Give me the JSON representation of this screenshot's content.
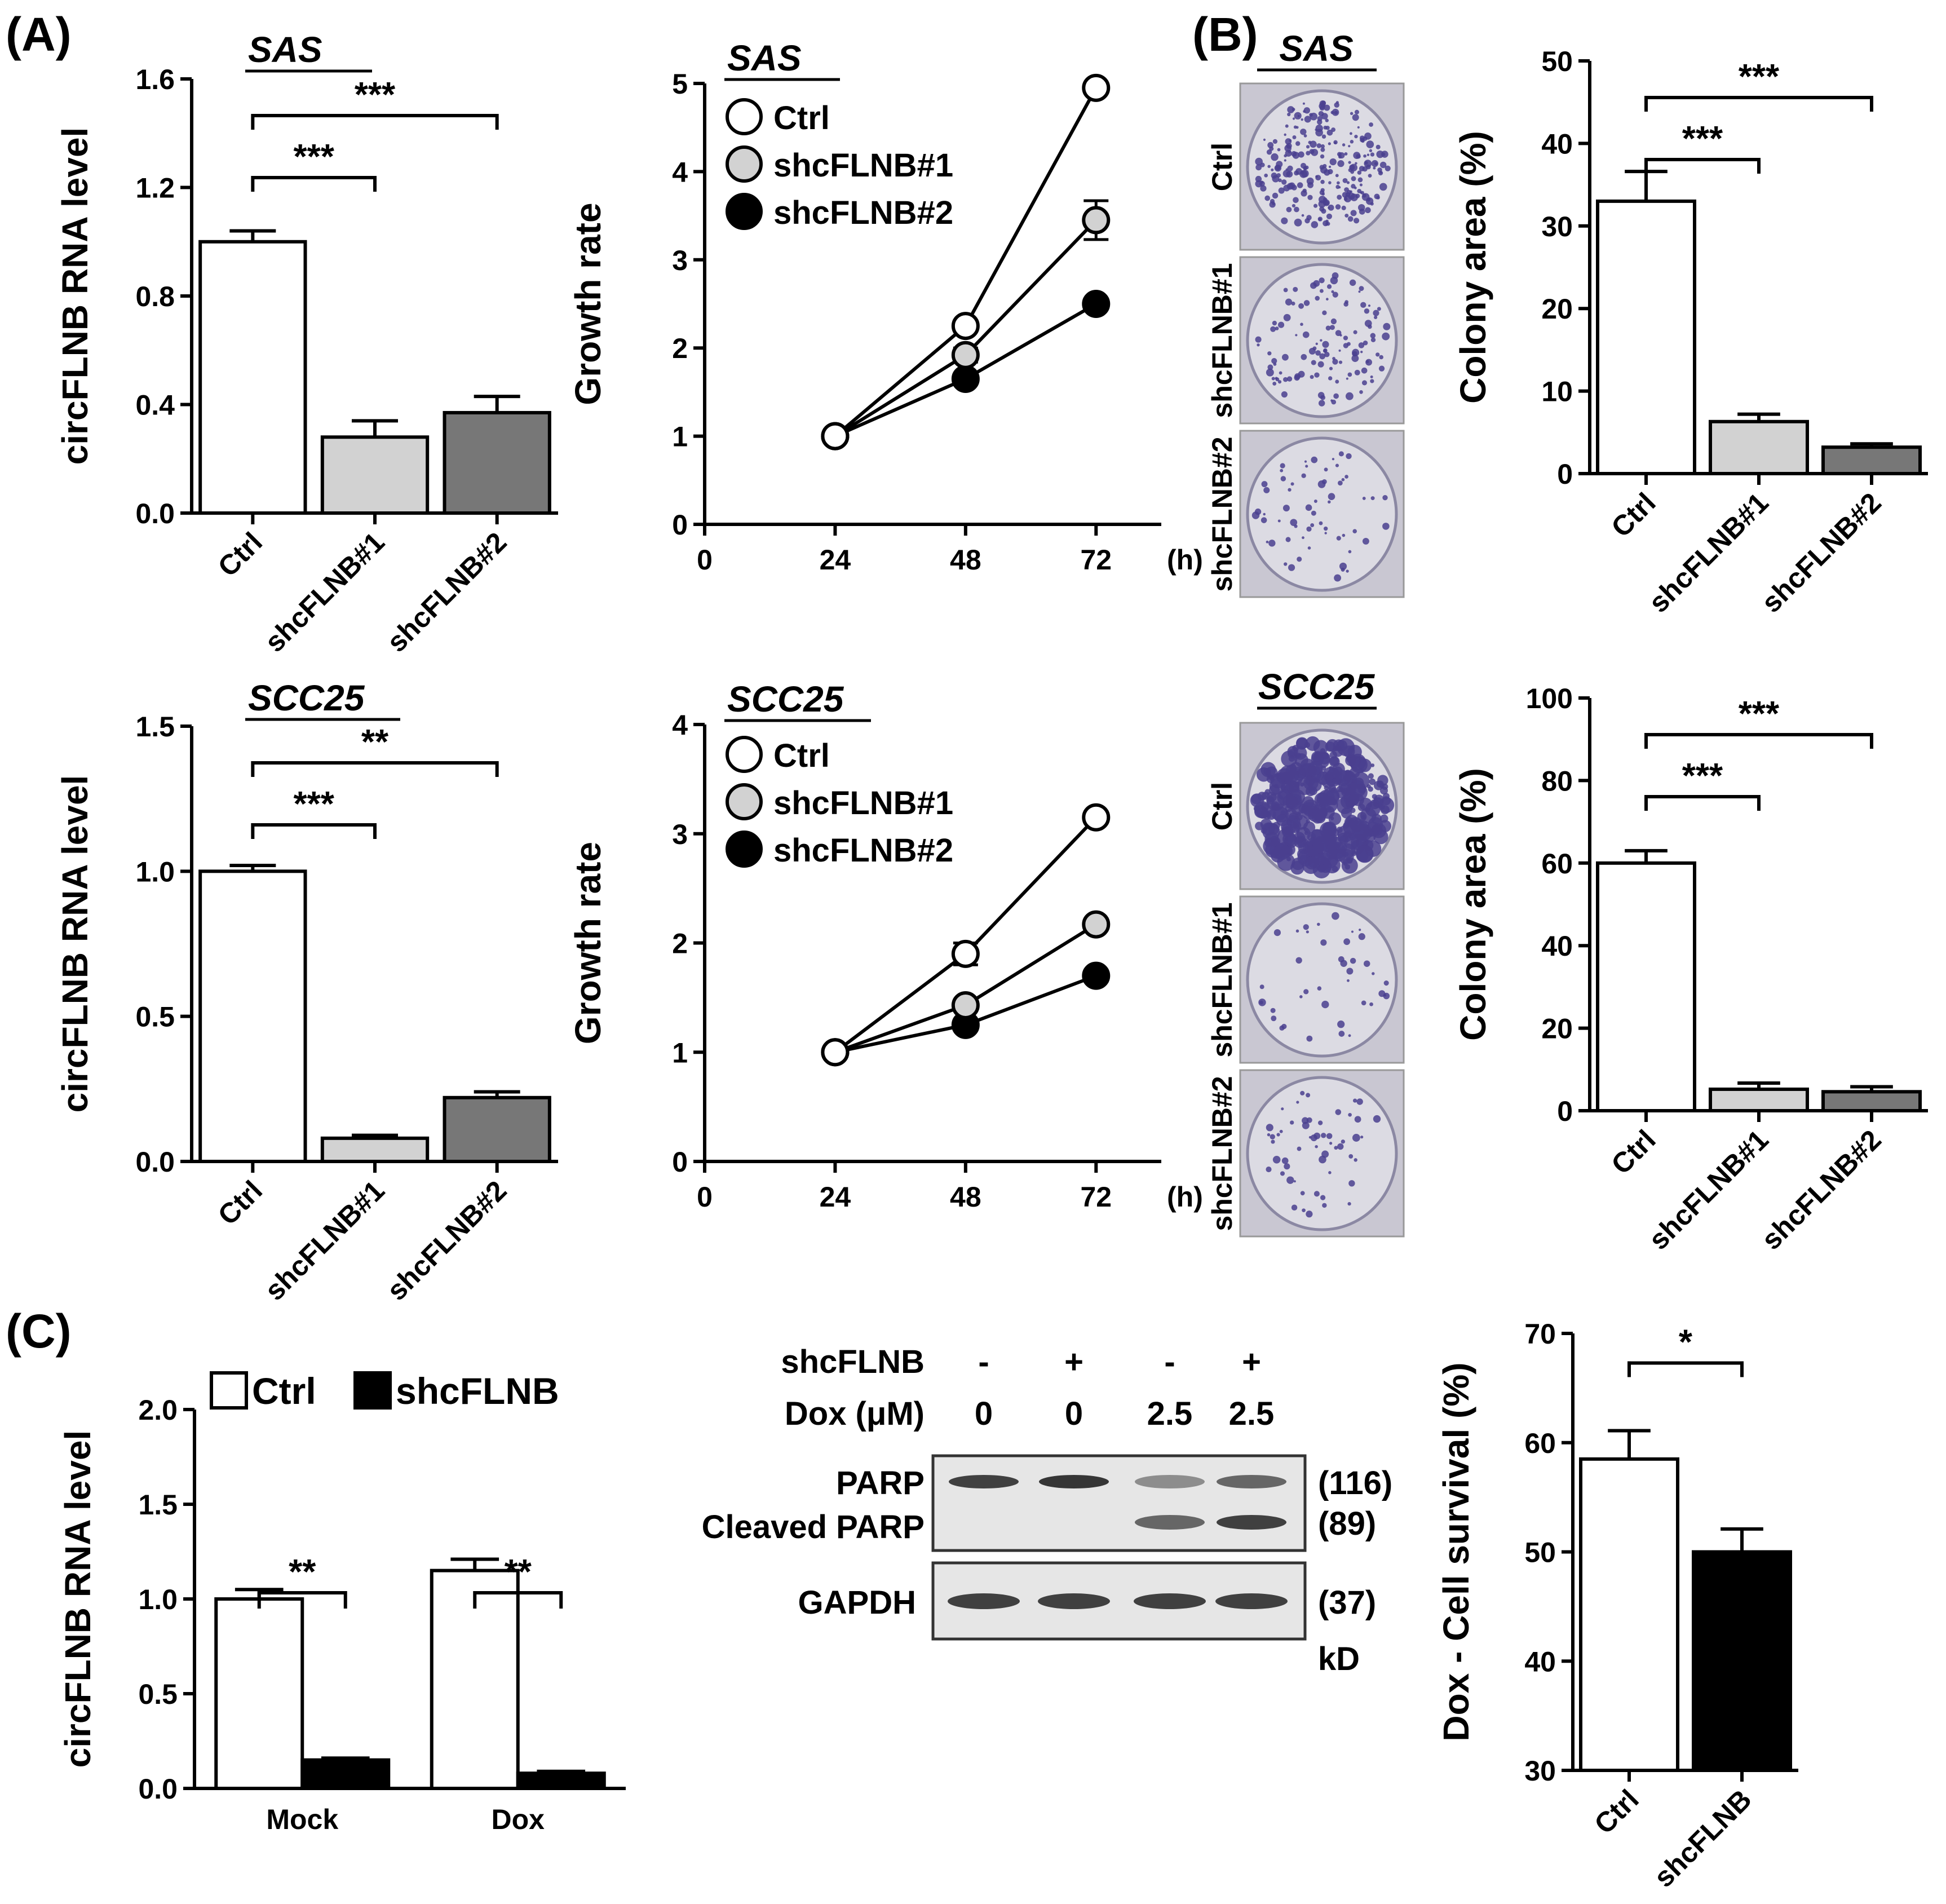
{
  "colors": {
    "ctrl": "#ffffff",
    "sh1": "#d2d2d2",
    "sh2": "#777777",
    "shc": "#000000",
    "plate": "#bcb7d9",
    "colony": "#4a3f8f"
  },
  "panels": {
    "a": "(A)",
    "b": "(B)",
    "c": "(C)"
  },
  "chart_data": [
    {
      "id": "a_sas_rna",
      "type": "bar",
      "title": "SAS",
      "ylabel": "circFLNB RNA level",
      "categories": [
        "Ctrl",
        "shcFLNB#1",
        "shcFLNB#2"
      ],
      "values": [
        1.0,
        0.28,
        0.37
      ],
      "errors": [
        0.04,
        0.06,
        0.06
      ],
      "colors": [
        "ctrl",
        "sh1",
        "sh2"
      ],
      "ylim": [
        0,
        1.6
      ],
      "yticks": [
        "0.0",
        "0.4",
        "0.8",
        "1.2",
        "1.6"
      ],
      "sig": [
        {
          "from": 0,
          "to": 1,
          "label": "***"
        },
        {
          "from": 0,
          "to": 2,
          "label": "***"
        }
      ]
    },
    {
      "id": "a_sas_growth",
      "type": "line",
      "title": "SAS",
      "ylabel": "Growth rate",
      "xlabel": "(h)",
      "x": [
        24,
        48,
        72
      ],
      "xticks": [
        "0",
        "24",
        "48",
        "72"
      ],
      "ylim": [
        0,
        5
      ],
      "yticks": [
        "0",
        "1",
        "2",
        "3",
        "4",
        "5"
      ],
      "series": [
        {
          "name": "Ctrl",
          "values": [
            1.0,
            2.25,
            4.95
          ],
          "errors": [
            0,
            0.05,
            0.05
          ],
          "color": "ctrl"
        },
        {
          "name": "shcFLNB#1",
          "values": [
            1.0,
            1.92,
            3.45
          ],
          "errors": [
            0,
            0.08,
            0.22
          ],
          "color": "sh1"
        },
        {
          "name": "shcFLNB#2",
          "values": [
            1.0,
            1.65,
            2.5
          ],
          "errors": [
            0,
            0.05,
            0.05
          ],
          "color": "shc"
        }
      ]
    },
    {
      "id": "b_sas_colony",
      "type": "bar",
      "ylabel": "Colony area (%)",
      "categories": [
        "Ctrl",
        "shcFLNB#1",
        "shcFLNB#2"
      ],
      "values": [
        33,
        6.3,
        3.2
      ],
      "errors": [
        3.6,
        0.9,
        0.4
      ],
      "colors": [
        "ctrl",
        "sh1",
        "sh2"
      ],
      "ylim": [
        0,
        50
      ],
      "yticks": [
        "0",
        "10",
        "20",
        "30",
        "40",
        "50"
      ],
      "sig": [
        {
          "from": 0,
          "to": 1,
          "label": "***"
        },
        {
          "from": 0,
          "to": 2,
          "label": "***"
        }
      ]
    },
    {
      "id": "a_scc25_rna",
      "type": "bar",
      "title": "SCC25",
      "ylabel": "circFLNB RNA level",
      "categories": [
        "Ctrl",
        "shcFLNB#1",
        "shcFLNB#2"
      ],
      "values": [
        1.0,
        0.08,
        0.22
      ],
      "errors": [
        0.02,
        0.01,
        0.02
      ],
      "colors": [
        "ctrl",
        "sh1",
        "sh2"
      ],
      "ylim": [
        0,
        1.5
      ],
      "yticks": [
        "0.0",
        "0.5",
        "1.0",
        "1.5"
      ],
      "sig": [
        {
          "from": 0,
          "to": 1,
          "label": "***"
        },
        {
          "from": 0,
          "to": 2,
          "label": "**"
        }
      ]
    },
    {
      "id": "a_scc25_growth",
      "type": "line",
      "title": "SCC25",
      "ylabel": "Growth rate",
      "xlabel": "(h)",
      "x": [
        24,
        48,
        72
      ],
      "xticks": [
        "0",
        "24",
        "48",
        "72"
      ],
      "ylim": [
        0,
        4
      ],
      "yticks": [
        "0",
        "1",
        "2",
        "3",
        "4"
      ],
      "series": [
        {
          "name": "Ctrl",
          "values": [
            1.0,
            1.9,
            3.15
          ],
          "errors": [
            0,
            0.1,
            0.05
          ],
          "color": "ctrl"
        },
        {
          "name": "shcFLNB#1",
          "values": [
            1.0,
            1.43,
            2.17
          ],
          "errors": [
            0,
            0.05,
            0.05
          ],
          "color": "sh1"
        },
        {
          "name": "shcFLNB#2",
          "values": [
            1.0,
            1.25,
            1.7
          ],
          "errors": [
            0,
            0.03,
            0.05
          ],
          "color": "shc"
        }
      ]
    },
    {
      "id": "b_scc25_colony",
      "type": "bar",
      "ylabel": "Colony area (%)",
      "categories": [
        "Ctrl",
        "shcFLNB#1",
        "shcFLNB#2"
      ],
      "values": [
        60,
        5.2,
        4.6
      ],
      "errors": [
        3,
        1.5,
        1.2
      ],
      "colors": [
        "ctrl",
        "sh1",
        "sh2"
      ],
      "ylim": [
        0,
        100
      ],
      "yticks": [
        "0",
        "20",
        "40",
        "60",
        "80",
        "100"
      ],
      "sig": [
        {
          "from": 0,
          "to": 1,
          "label": "***"
        },
        {
          "from": 0,
          "to": 2,
          "label": "***"
        }
      ]
    },
    {
      "id": "c_rna",
      "type": "bar",
      "ylabel": "circFLNB RNA level",
      "categories": [
        "Mock",
        "Dox"
      ],
      "legend": [
        "Ctrl",
        "shcFLNB"
      ],
      "series": [
        {
          "name": "Ctrl",
          "values": [
            1.0,
            1.15
          ],
          "errors": [
            0.05,
            0.06
          ],
          "color": "ctrl"
        },
        {
          "name": "shcFLNB",
          "values": [
            0.15,
            0.08
          ],
          "errors": [
            0.01,
            0.01
          ],
          "color": "shc"
        }
      ],
      "ylim": [
        0,
        2.0
      ],
      "yticks": [
        "0.0",
        "0.5",
        "1.0",
        "1.5",
        "2.0"
      ],
      "sig": [
        {
          "group": 0,
          "label": "**"
        },
        {
          "group": 1,
          "label": "**"
        }
      ]
    },
    {
      "id": "c_survival",
      "type": "bar",
      "ylabel": "Dox - Cell survival (%)",
      "categories": [
        "Ctrl",
        "shcFLNB"
      ],
      "values": [
        58.5,
        50
      ],
      "errors": [
        2.6,
        2.1
      ],
      "colors": [
        "ctrl",
        "shc"
      ],
      "ylim": [
        30,
        70
      ],
      "yticks": [
        "30",
        "40",
        "50",
        "60",
        "70"
      ],
      "sig": [
        {
          "from": 0,
          "to": 1,
          "label": "*"
        }
      ]
    }
  ],
  "colony_plates": {
    "sas": {
      "title": "SAS",
      "labels": [
        "Ctrl",
        "shcFLNB#1",
        "shcFLNB#2"
      ]
    },
    "scc25": {
      "title": "SCC25",
      "labels": [
        "Ctrl",
        "shcFLNB#1",
        "shcFLNB#2"
      ]
    }
  },
  "western": {
    "row_labels": [
      "shcFLNB",
      "Dox (μM)"
    ],
    "shcFLNB": [
      "-",
      "+",
      "-",
      "+"
    ],
    "dox": [
      "0",
      "0",
      "2.5",
      "2.5"
    ],
    "bands": [
      "PARP",
      "Cleaved PARP",
      "GAPDH"
    ],
    "sizes": [
      "(116)",
      "(89)",
      "(37)"
    ],
    "unit": "kD"
  }
}
